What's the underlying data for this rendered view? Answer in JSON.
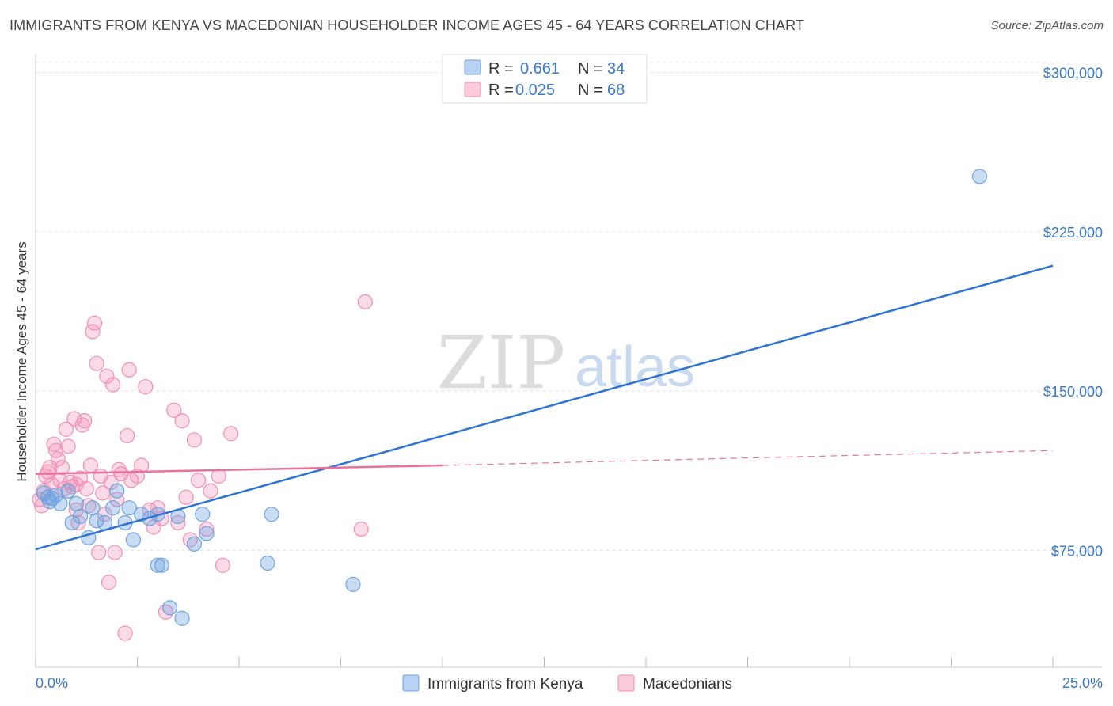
{
  "title": "IMMIGRANTS FROM KENYA VS MACEDONIAN HOUSEHOLDER INCOME AGES 45 - 64 YEARS CORRELATION CHART",
  "source": "Source: ZipAtlas.com",
  "watermark": {
    "zip": "ZIP",
    "atlas": "atlas"
  },
  "colors": {
    "blue": "#6fa3e0",
    "blue_line": "#2f74d0",
    "pink": "#f28fb3",
    "pink_line": "#e8729b",
    "tick": "#3a78c9"
  },
  "legend": {
    "r_label": "R =",
    "n_label": "N =",
    "rows": [
      {
        "r": "0.661",
        "n": "34"
      },
      {
        "r": "0.025",
        "n": "68"
      }
    ]
  },
  "chart_data": {
    "type": "scatter",
    "title": "IMMIGRANTS FROM KENYA VS MACEDONIAN HOUSEHOLDER INCOME AGES 45 - 64 YEARS CORRELATION CHART",
    "xlabel": "",
    "ylabel": "Householder Income Ages 45 - 64 years",
    "xlim": [
      0,
      25
    ],
    "ylim": [
      20000,
      308000
    ],
    "x_tick_labels": [
      "0.0%",
      "25.0%"
    ],
    "y_ticks": [
      75000,
      150000,
      225000,
      300000
    ],
    "y_tick_labels": [
      "$75,000",
      "$150,000",
      "$225,000",
      "$300,000"
    ],
    "grid": true,
    "series": [
      {
        "name": "Immigrants from Kenya",
        "points": [
          [
            0.2,
            102000
          ],
          [
            0.3,
            100000
          ],
          [
            0.4,
            99500
          ],
          [
            0.5,
            101000
          ],
          [
            0.6,
            97000
          ],
          [
            0.8,
            103000
          ],
          [
            0.9,
            88000
          ],
          [
            1.0,
            97000
          ],
          [
            1.1,
            91000
          ],
          [
            1.3,
            81000
          ],
          [
            1.4,
            95000
          ],
          [
            1.5,
            89000
          ],
          [
            1.7,
            88000
          ],
          [
            1.9,
            95000
          ],
          [
            2.0,
            103000
          ],
          [
            2.2,
            88000
          ],
          [
            2.3,
            95000
          ],
          [
            2.4,
            80000
          ],
          [
            2.6,
            92000
          ],
          [
            2.8,
            90000
          ],
          [
            3.0,
            92000
          ],
          [
            3.0,
            68000
          ],
          [
            3.1,
            68000
          ],
          [
            3.3,
            48000
          ],
          [
            3.5,
            91000
          ],
          [
            3.6,
            43000
          ],
          [
            3.9,
            78000
          ],
          [
            4.1,
            92000
          ],
          [
            4.2,
            83000
          ],
          [
            5.7,
            69000
          ],
          [
            5.8,
            92000
          ],
          [
            7.8,
            59000
          ],
          [
            23.2,
            251000
          ],
          [
            0.35,
            98000
          ]
        ]
      },
      {
        "name": "Macedonians",
        "points": [
          [
            0.1,
            99000
          ],
          [
            0.15,
            96000
          ],
          [
            0.2,
            103000
          ],
          [
            0.25,
            110000
          ],
          [
            0.3,
            112000
          ],
          [
            0.35,
            114000
          ],
          [
            0.4,
            106000
          ],
          [
            0.45,
            125000
          ],
          [
            0.5,
            122000
          ],
          [
            0.55,
            118000
          ],
          [
            0.6,
            108000
          ],
          [
            0.65,
            114000
          ],
          [
            0.7,
            104000
          ],
          [
            0.75,
            132000
          ],
          [
            0.8,
            124000
          ],
          [
            0.85,
            107000
          ],
          [
            0.9,
            105000
          ],
          [
            0.95,
            137000
          ],
          [
            1.0,
            94000
          ],
          [
            1.05,
            88000
          ],
          [
            1.1,
            109000
          ],
          [
            1.15,
            134000
          ],
          [
            1.2,
            136000
          ],
          [
            1.25,
            104000
          ],
          [
            1.3,
            96000
          ],
          [
            1.35,
            115000
          ],
          [
            1.4,
            178000
          ],
          [
            1.45,
            182000
          ],
          [
            1.5,
            163000
          ],
          [
            1.55,
            74000
          ],
          [
            1.6,
            110000
          ],
          [
            1.65,
            102000
          ],
          [
            1.7,
            92000
          ],
          [
            1.75,
            157000
          ],
          [
            1.8,
            60000
          ],
          [
            1.85,
            107000
          ],
          [
            1.9,
            153000
          ],
          [
            1.95,
            74000
          ],
          [
            2.0,
            99000
          ],
          [
            2.05,
            113000
          ],
          [
            2.1,
            111000
          ],
          [
            2.2,
            36000
          ],
          [
            2.25,
            129000
          ],
          [
            2.3,
            160000
          ],
          [
            2.35,
            108000
          ],
          [
            2.5,
            110000
          ],
          [
            2.6,
            115000
          ],
          [
            2.7,
            152000
          ],
          [
            2.8,
            94000
          ],
          [
            2.9,
            86000
          ],
          [
            3.0,
            95000
          ],
          [
            3.1,
            90000
          ],
          [
            3.2,
            46000
          ],
          [
            3.4,
            141000
          ],
          [
            3.5,
            88000
          ],
          [
            3.6,
            136000
          ],
          [
            3.7,
            100000
          ],
          [
            3.8,
            80000
          ],
          [
            3.9,
            127000
          ],
          [
            4.0,
            108000
          ],
          [
            4.2,
            85000
          ],
          [
            4.3,
            103000
          ],
          [
            4.5,
            110000
          ],
          [
            4.6,
            68000
          ],
          [
            4.8,
            130000
          ],
          [
            8.0,
            85000
          ],
          [
            8.1,
            192000
          ],
          [
            1.0,
            106000
          ]
        ]
      }
    ],
    "trend_lines": [
      {
        "series": "Immigrants from Kenya",
        "x": [
          0,
          25
        ],
        "y": [
          75500,
          209000
        ],
        "style": "solid"
      },
      {
        "series": "Macedonians",
        "x": [
          0,
          10
        ],
        "y": [
          111000,
          115000
        ],
        "style": "solid"
      },
      {
        "series": "Macedonians",
        "x": [
          10,
          25
        ],
        "y": [
          115000,
          122000
        ],
        "style": "dashed"
      }
    ]
  },
  "bottom_legend": [
    "Immigrants from Kenya",
    "Macedonians"
  ]
}
